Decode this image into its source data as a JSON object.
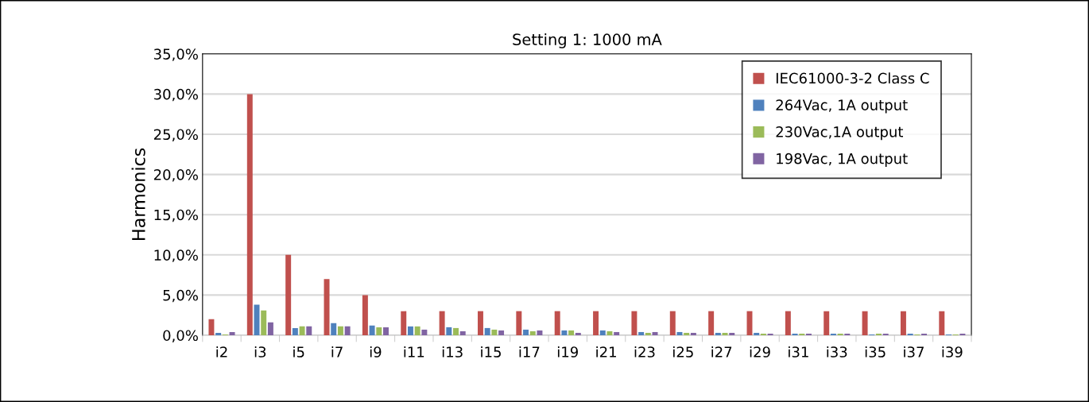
{
  "chart_data": {
    "type": "bar",
    "title": "Setting 1: 1000 mA",
    "ylabel": "Harmonics",
    "categories": [
      "i2",
      "i3",
      "i5",
      "i7",
      "i9",
      "i11",
      "i13",
      "i15",
      "i17",
      "i19",
      "i21",
      "i23",
      "i25",
      "i27",
      "i29",
      "i31",
      "i33",
      "i35",
      "i37",
      "i39"
    ],
    "series": [
      {
        "name": "IEC61000-3-2 Class C",
        "color": "#c0504d",
        "values": [
          2,
          30,
          10,
          7,
          5,
          3,
          3,
          3,
          3,
          3,
          3,
          3,
          3,
          3,
          3,
          3,
          3,
          3,
          3,
          3
        ]
      },
      {
        "name": "264Vac, 1A output",
        "color": "#4f81bd",
        "values": [
          0.3,
          3.8,
          0.9,
          1.5,
          1.2,
          1.1,
          1.0,
          0.9,
          0.7,
          0.6,
          0.6,
          0.4,
          0.4,
          0.3,
          0.3,
          0.2,
          0.2,
          0.1,
          0.2,
          0.1
        ]
      },
      {
        "name": "230Vac,1A output",
        "color": "#9bbb59",
        "values": [
          0.1,
          3.1,
          1.1,
          1.1,
          1.0,
          1.1,
          0.9,
          0.7,
          0.5,
          0.6,
          0.5,
          0.3,
          0.3,
          0.3,
          0.2,
          0.2,
          0.2,
          0.2,
          0.1,
          0.1
        ]
      },
      {
        "name": "198Vac, 1A output",
        "color": "#8064a2",
        "values": [
          0.4,
          1.6,
          1.1,
          1.1,
          1.0,
          0.7,
          0.5,
          0.6,
          0.6,
          0.3,
          0.4,
          0.4,
          0.3,
          0.3,
          0.2,
          0.2,
          0.2,
          0.2,
          0.2,
          0.2
        ]
      }
    ],
    "ylim": [
      0,
      35
    ],
    "yticks": [
      {
        "value": 0,
        "label": "0,0%"
      },
      {
        "value": 5,
        "label": "5,0%"
      },
      {
        "value": 10,
        "label": "10,0%"
      },
      {
        "value": 15,
        "label": "15,0%"
      },
      {
        "value": 20,
        "label": "20,0%"
      },
      {
        "value": 25,
        "label": "25,0%"
      },
      {
        "value": 30,
        "label": "30,0%"
      },
      {
        "value": 35,
        "label": "35,0%"
      }
    ],
    "grid": "y",
    "legend": "top right"
  }
}
